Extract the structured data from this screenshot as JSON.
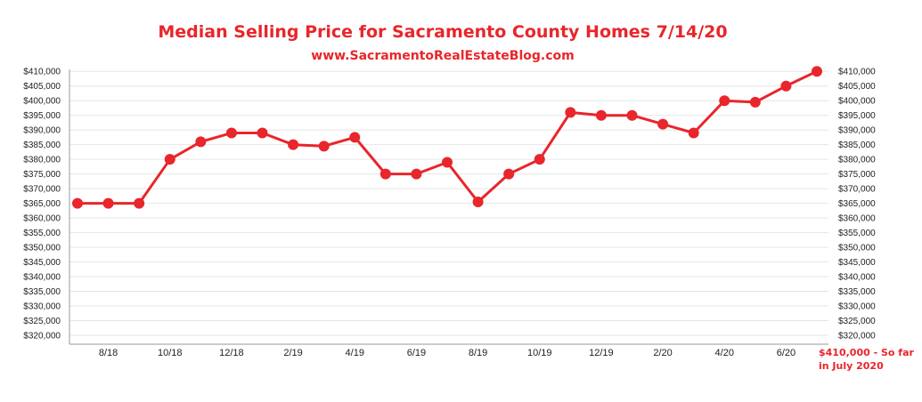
{
  "chart_data": {
    "type": "line",
    "title": "Median Selling Price for Sacramento County Homes 7/14/20",
    "subtitle": "www.SacramentoRealEstateBlog.com",
    "y_ticks": [
      "$320,000",
      "$325,000",
      "$330,000",
      "$335,000",
      "$340,000",
      "$345,000",
      "$350,000",
      "$355,000",
      "$360,000",
      "$365,000",
      "$370,000",
      "$375,000",
      "$380,000",
      "$385,000",
      "$390,000",
      "$395,000",
      "$400,000",
      "$405,000",
      "$410,000"
    ],
    "ylim": [
      320000,
      412500
    ],
    "x_ticks": [
      "8/18",
      "10/18",
      "12/18",
      "2/19",
      "4/19",
      "6/19",
      "8/19",
      "10/19",
      "12/19",
      "2/20",
      "4/20",
      "6/20"
    ],
    "categories": [
      "7/18",
      "8/18",
      "9/18",
      "10/18",
      "11/18",
      "12/18",
      "1/19",
      "2/19",
      "3/19",
      "4/19",
      "5/19",
      "6/19",
      "7/19",
      "8/19",
      "9/19",
      "10/19",
      "11/19",
      "12/19",
      "1/20",
      "2/20",
      "3/20",
      "4/20",
      "5/20",
      "6/20",
      "7/20"
    ],
    "values": [
      365000,
      365000,
      365000,
      380000,
      386000,
      389000,
      389000,
      385000,
      384500,
      387500,
      375000,
      375000,
      379000,
      365500,
      375000,
      380000,
      396000,
      395000,
      395000,
      392000,
      389000,
      400000,
      399500,
      405000,
      410000
    ],
    "annotation": "$410,000 - So far in July 2020",
    "annotation_line1": "$410,000 - So far",
    "annotation_line2": "in July 2020",
    "grid": true,
    "colors": {
      "line": "#e8262b",
      "title": "#e8262b",
      "grid": "#e6e6e6",
      "axis": "#999999"
    }
  }
}
